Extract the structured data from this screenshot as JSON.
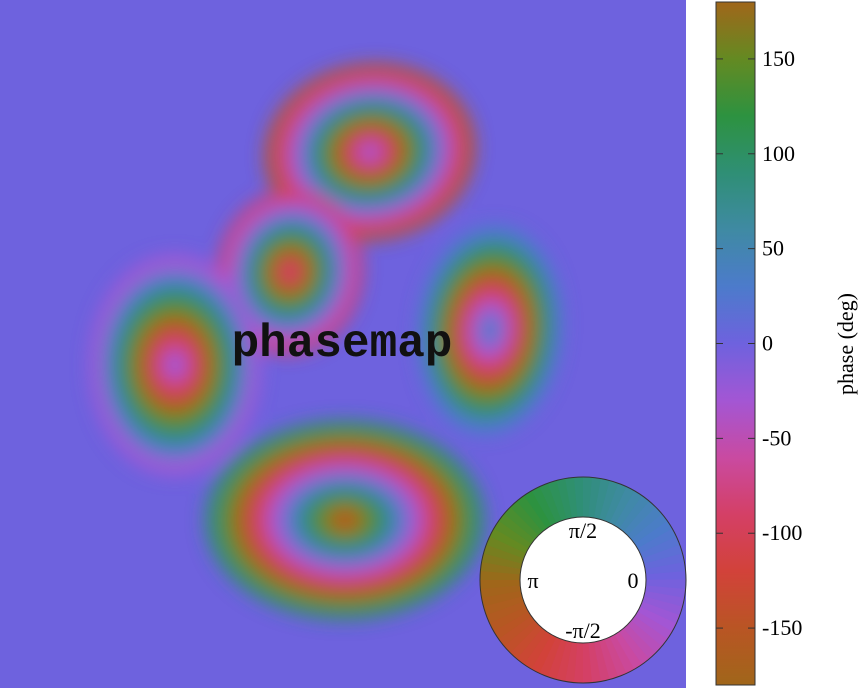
{
  "chart_data": {
    "type": "heatmap",
    "title": "phasemap",
    "colorbar": {
      "label": "phase (deg)",
      "range": [
        -180,
        180
      ],
      "ticks": [
        -150,
        -100,
        -50,
        0,
        50,
        100,
        150
      ],
      "tick_labels": [
        "-150",
        "-100",
        "-50",
        "0",
        "50",
        "100",
        "150"
      ]
    },
    "colorwheel": {
      "labels": [
        {
          "text": "π/2",
          "angle_deg": 90
        },
        {
          "text": "π",
          "angle_deg": 180
        },
        {
          "text": "0",
          "angle_deg": 0
        },
        {
          "text": "-π/2",
          "angle_deg": -90
        }
      ]
    },
    "colormap": [
      {
        "phase": -180,
        "color": "#a0661a"
      },
      {
        "phase": -150,
        "color": "#b95524"
      },
      {
        "phase": -120,
        "color": "#d2423a"
      },
      {
        "phase": -90,
        "color": "#d44066"
      },
      {
        "phase": -60,
        "color": "#c94aa1"
      },
      {
        "phase": -30,
        "color": "#a356d4"
      },
      {
        "phase": 0,
        "color": "#6e62de"
      },
      {
        "phase": 30,
        "color": "#4c7bcb"
      },
      {
        "phase": 60,
        "color": "#3f8aa3"
      },
      {
        "phase": 90,
        "color": "#2f8f75"
      },
      {
        "phase": 120,
        "color": "#2d9240"
      },
      {
        "phase": 150,
        "color": "#648a22"
      },
      {
        "phase": 180,
        "color": "#a0661a"
      }
    ],
    "background_color": "#6e62de"
  }
}
